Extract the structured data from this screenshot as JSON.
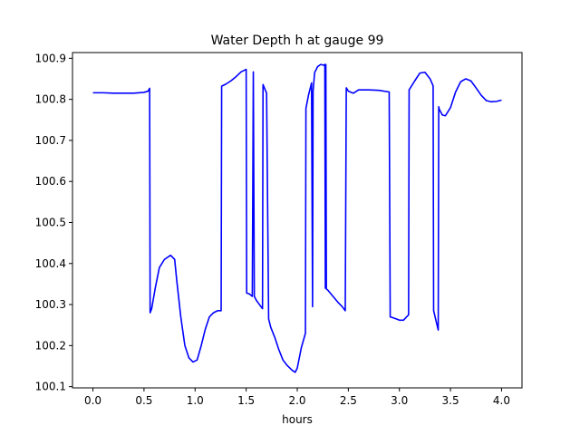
{
  "chart_data": {
    "type": "line",
    "title": "Water Depth h at gauge 99",
    "xlabel": "hours",
    "ylabel": "",
    "xlim": [
      -0.2,
      4.2
    ],
    "ylim": [
      100.097,
      100.914
    ],
    "xticks": [
      0.0,
      0.5,
      1.0,
      1.5,
      2.0,
      2.5,
      3.0,
      3.5,
      4.0
    ],
    "xtick_labels": [
      "0.0",
      "0.5",
      "1.0",
      "1.5",
      "2.0",
      "2.5",
      "3.0",
      "3.5",
      "4.0"
    ],
    "yticks": [
      100.1,
      100.2,
      100.3,
      100.4,
      100.5,
      100.6,
      100.7,
      100.8,
      100.9
    ],
    "ytick_labels": [
      "100.1",
      "100.2",
      "100.3",
      "100.4",
      "100.5",
      "100.6",
      "100.7",
      "100.8",
      "100.9"
    ],
    "grid": false,
    "series": [
      {
        "color": "#0000ff",
        "x": [
          0.0,
          0.1,
          0.2,
          0.3,
          0.4,
          0.5,
          0.54,
          0.555,
          0.56,
          0.575,
          0.61,
          0.65,
          0.7,
          0.76,
          0.8,
          0.82,
          0.86,
          0.9,
          0.94,
          0.98,
          1.02,
          1.06,
          1.1,
          1.14,
          1.18,
          1.22,
          1.255,
          1.26,
          1.3,
          1.35,
          1.4,
          1.45,
          1.5,
          1.505,
          1.53,
          1.56,
          1.57,
          1.58,
          1.6,
          1.63,
          1.66,
          1.665,
          1.7,
          1.72,
          1.74,
          1.78,
          1.82,
          1.86,
          1.9,
          1.95,
          1.98,
          2.0,
          2.04,
          2.08,
          2.085,
          2.11,
          2.14,
          2.15,
          2.155,
          2.17,
          2.2,
          2.23,
          2.26,
          2.27,
          2.275,
          2.28,
          2.285,
          2.3,
          2.35,
          2.4,
          2.44,
          2.47,
          2.48,
          2.5,
          2.55,
          2.6,
          2.7,
          2.8,
          2.9,
          2.91,
          2.96,
          3.0,
          3.04,
          3.07,
          3.09,
          3.095,
          3.15,
          3.2,
          3.25,
          3.3,
          3.33,
          3.335,
          3.38,
          3.385,
          3.39,
          3.42,
          3.45,
          3.5,
          3.55,
          3.6,
          3.65,
          3.7,
          3.75,
          3.8,
          3.85,
          3.9,
          3.95,
          4.0
        ],
        "y": [
          100.816,
          100.816,
          100.815,
          100.815,
          100.815,
          100.817,
          100.82,
          100.827,
          100.28,
          100.29,
          100.34,
          100.39,
          100.41,
          100.42,
          100.41,
          100.36,
          100.27,
          100.2,
          100.17,
          100.16,
          100.165,
          100.2,
          100.24,
          100.27,
          100.28,
          100.285,
          100.285,
          100.832,
          100.837,
          100.845,
          100.855,
          100.867,
          100.873,
          100.328,
          100.326,
          100.32,
          100.867,
          100.32,
          100.31,
          100.3,
          100.29,
          100.836,
          100.815,
          100.265,
          100.245,
          100.22,
          100.19,
          100.165,
          100.152,
          100.14,
          100.135,
          100.145,
          100.195,
          100.23,
          100.778,
          100.81,
          100.84,
          100.295,
          100.82,
          100.865,
          100.88,
          100.885,
          100.883,
          100.885,
          100.34,
          100.885,
          100.338,
          100.335,
          100.32,
          100.305,
          100.295,
          100.285,
          100.828,
          100.82,
          100.815,
          100.823,
          100.823,
          100.822,
          100.818,
          100.27,
          100.266,
          100.262,
          100.262,
          100.27,
          100.275,
          100.823,
          100.845,
          100.864,
          100.866,
          100.85,
          100.833,
          100.285,
          100.238,
          100.782,
          100.776,
          100.762,
          100.76,
          100.78,
          100.818,
          100.843,
          100.85,
          100.845,
          100.828,
          100.81,
          100.797,
          100.794,
          100.795,
          100.798
        ]
      }
    ]
  }
}
